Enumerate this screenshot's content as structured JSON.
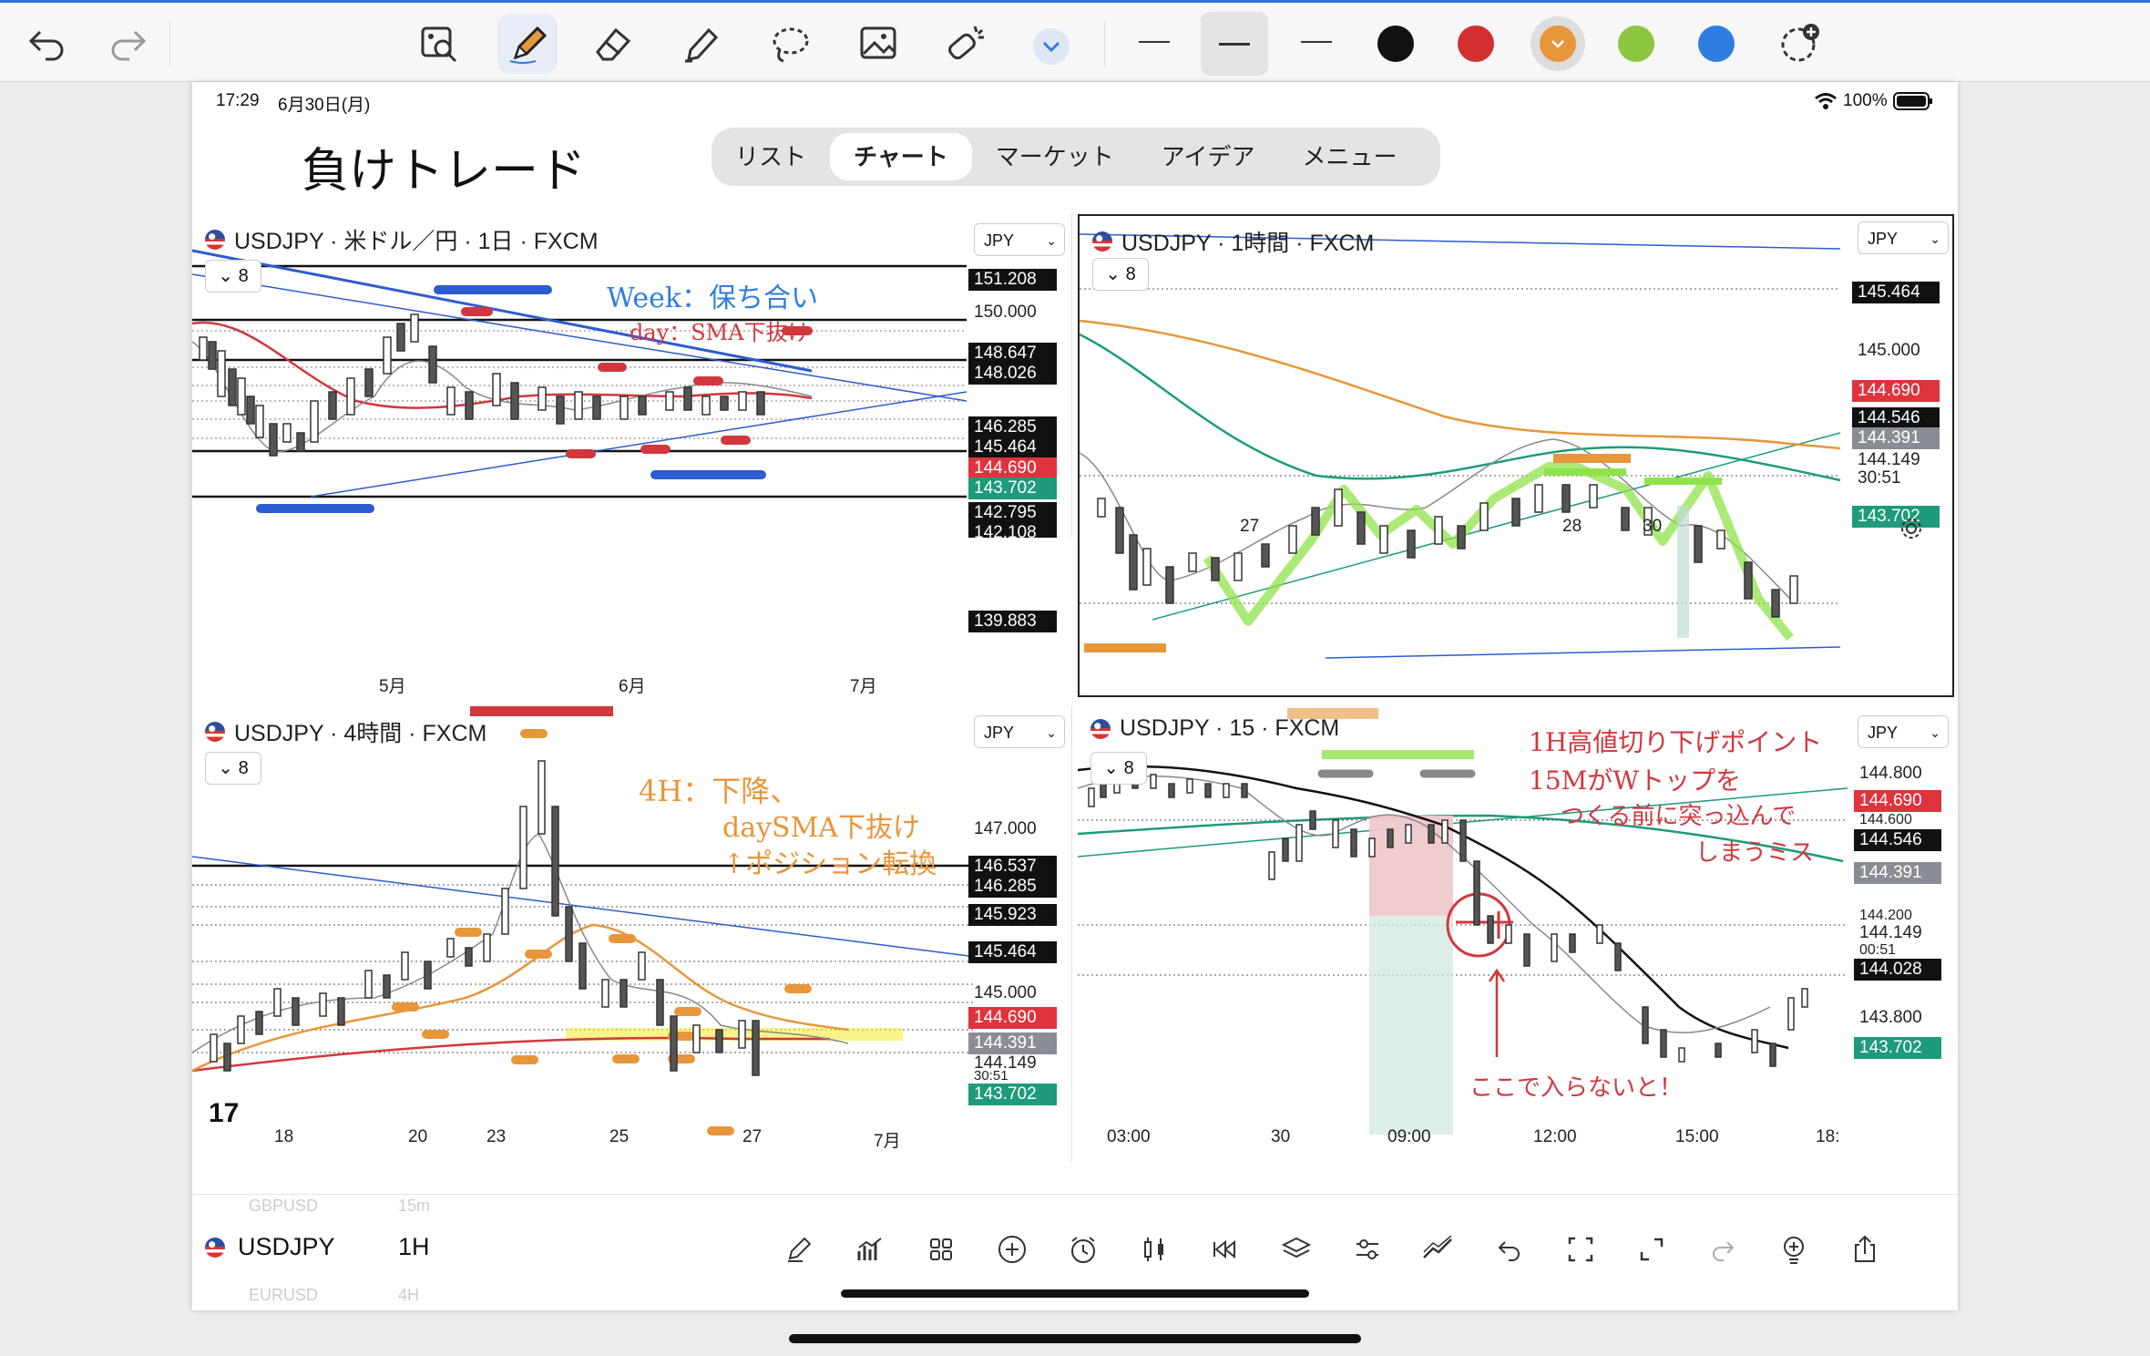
{
  "toolbar": {
    "undo": "undo-icon",
    "redo": "redo-icon",
    "tools": [
      "image-search-icon",
      "pen-icon",
      "eraser-icon",
      "marker-icon",
      "lasso-icon",
      "image-icon",
      "sticker-icon",
      "chevron-down-icon"
    ],
    "line_widths": [
      "thin",
      "medium",
      "thick"
    ],
    "colors": [
      "#111111",
      "#d32f2f",
      "#e8963a",
      "#8cc63f",
      "#2f7de1"
    ],
    "selected_color": "#e8963a"
  },
  "status": {
    "time": "17:29",
    "date": "6月30日(月)",
    "battery": "100%"
  },
  "note_title": "負けトレード",
  "nav": {
    "tabs": [
      "リスト",
      "チャート",
      "マーケット",
      "アイデア",
      "メニュー"
    ],
    "active": "チャート"
  },
  "panels": {
    "p1": {
      "title": "USDJPY · 米ドル／円 · 1日 · FXCM",
      "currency": "JPY",
      "count": "8",
      "prices": [
        "151.208",
        "150.000",
        "148.647",
        "148.026",
        "146.285",
        "145.464",
        "144.690",
        "143.702",
        "142.795",
        "142.108",
        "139.883"
      ],
      "xaxis": [
        "5月",
        "6月",
        "7月"
      ],
      "notes": [
        "Week：保ち合い",
        "day：SMA下抜け"
      ]
    },
    "p2": {
      "title": "USDJPY · 1時間 · FXCM",
      "currency": "JPY",
      "count": "8",
      "prices": [
        "145.464",
        "145.000",
        "144.690",
        "144.546",
        "144.391",
        "144.149",
        "30:51",
        "143.702"
      ],
      "xaxis": [
        "27",
        "28",
        "30"
      ]
    },
    "p3": {
      "title": "USDJPY · 4時間 · FXCM",
      "currency": "JPY",
      "count": "8",
      "prices": [
        "147.000",
        "146.537",
        "146.285",
        "145.923",
        "145.464",
        "145.000",
        "144.690",
        "144.391",
        "144.149",
        "30:51",
        "143.702"
      ],
      "xaxis": [
        "18",
        "20",
        "23",
        "25",
        "27",
        "7月"
      ],
      "notes": [
        "4H：下降、",
        "daySMA下抜け",
        "↑ポジション転換"
      ]
    },
    "p4": {
      "title": "USDJPY · 15 · FXCM",
      "currency": "JPY",
      "count": "8",
      "prices": [
        "144.800",
        "144.690",
        "144.600",
        "144.546",
        "144.391",
        "144.200",
        "144.149",
        "00:51",
        "144.028",
        "143.800",
        "143.702"
      ],
      "xaxis": [
        "03:00",
        "30",
        "09:00",
        "12:00",
        "15:00",
        "18:"
      ],
      "notes": [
        "1H高値切り下げポイント",
        "15MがWトップを",
        "つくる前に突っ込んで",
        "しまうミス",
        "ここで入らないと！"
      ]
    }
  },
  "bottom": {
    "symbol": "USDJPY",
    "interval": "1H",
    "ghost_above": [
      "GBPUSD",
      "15m"
    ],
    "ghost_below": [
      "EURUSD",
      "4H"
    ],
    "icons": [
      "pencil-icon",
      "indicators-icon",
      "layout-icon",
      "add-icon",
      "alarm-icon",
      "candles-icon",
      "replay-icon",
      "layers-icon",
      "settings-icon",
      "compare-icon",
      "undo-icon",
      "fullscreen-select-icon",
      "expand-icon",
      "redo-icon",
      "idea-icon",
      "share-icon"
    ]
  }
}
